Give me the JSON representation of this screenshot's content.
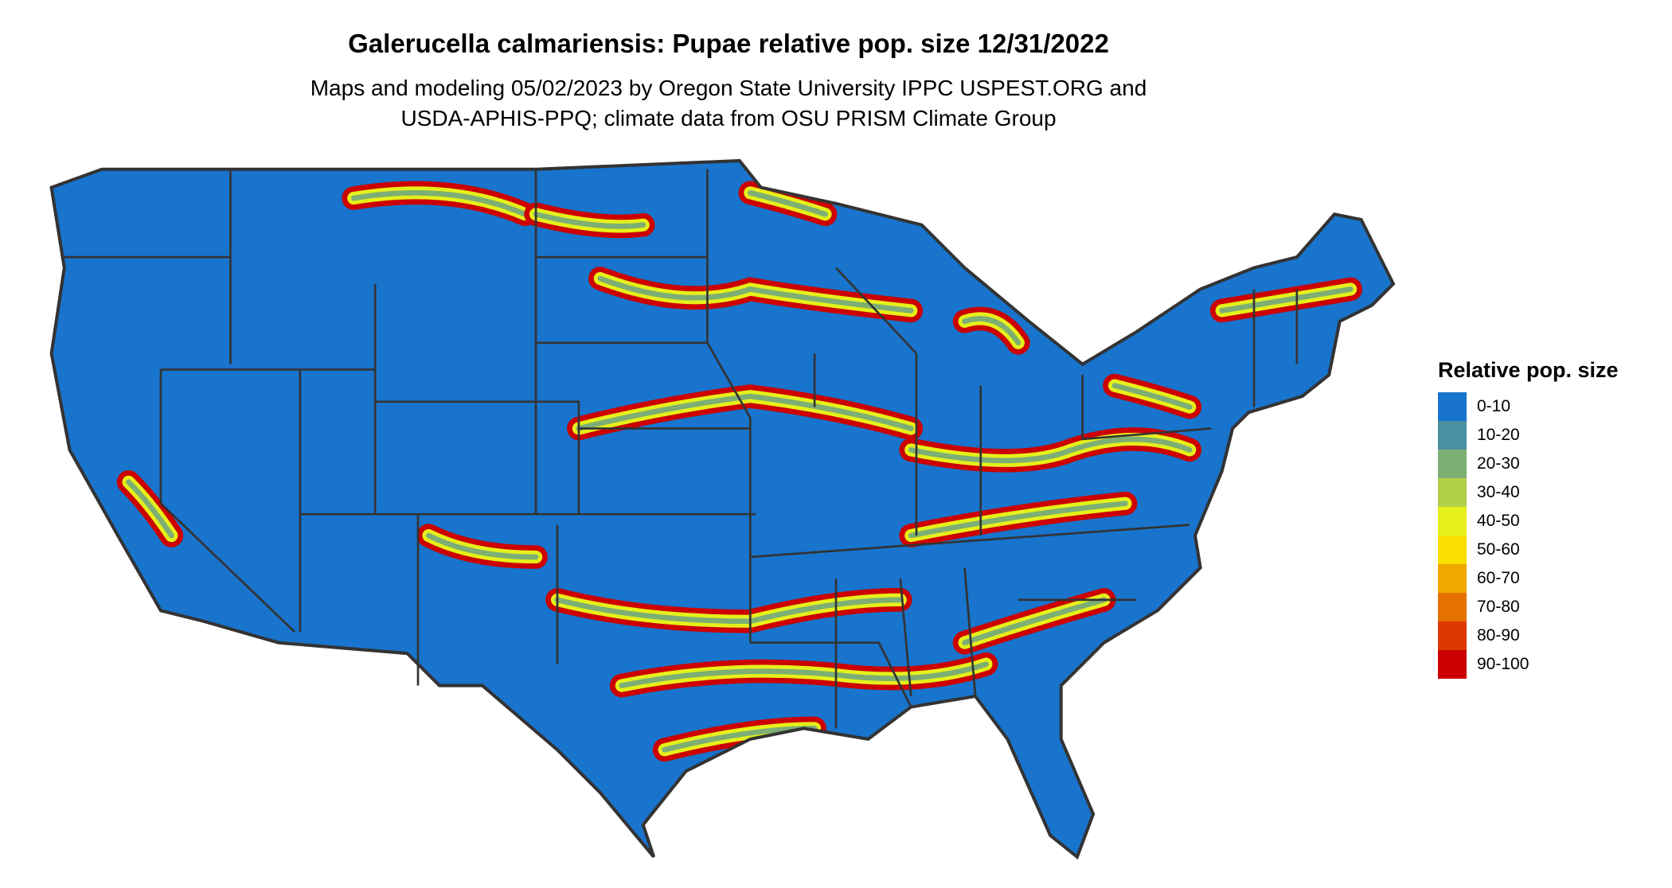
{
  "title": "Galerucella calmariensis: Pupae relative pop. size 12/31/2022",
  "subtitle_line1": "Maps and modeling 05/02/2023 by Oregon State University IPPC USPEST.ORG and",
  "subtitle_line2": "USDA-APHIS-PPQ; climate data from OSU PRISM Climate Group",
  "chart_data": {
    "type": "heatmap",
    "legend": {
      "title": "Relative pop. size",
      "placement": "right",
      "items": [
        {
          "label": "0-10",
          "color": "#1874CD"
        },
        {
          "label": "10-20",
          "color": "#4A90A0"
        },
        {
          "label": "20-30",
          "color": "#7DAF74"
        },
        {
          "label": "30-40",
          "color": "#B2D047"
        },
        {
          "label": "40-50",
          "color": "#E6F01A"
        },
        {
          "label": "50-60",
          "color": "#F9E000"
        },
        {
          "label": "60-70",
          "color": "#EFA800"
        },
        {
          "label": "70-80",
          "color": "#E57200"
        },
        {
          "label": "80-90",
          "color": "#DC3800"
        },
        {
          "label": "90-100",
          "color": "#CC0000"
        }
      ]
    },
    "border_color": "#333333"
  }
}
